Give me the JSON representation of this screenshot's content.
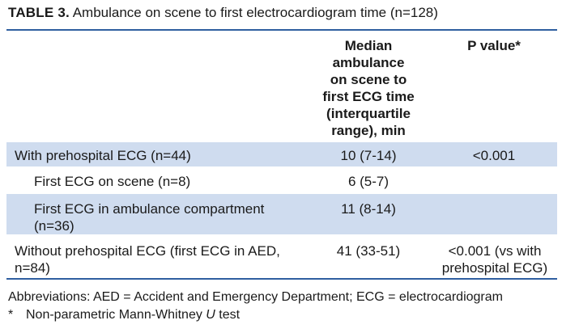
{
  "title": {
    "lead": "TABLE 3.",
    "text": "Ambulance on scene to first electrocardiogram time (n=128)"
  },
  "table": {
    "headers": {
      "median_lines": [
        "Median",
        "ambulance",
        "on scene to",
        "first ECG time",
        "(interquartile",
        "range), min"
      ],
      "pvalue": "P value*"
    },
    "rows": [
      {
        "label": [
          "With prehospital ECG (n=44)"
        ],
        "median": "10 (7-14)",
        "pvalue": [
          "<0.001"
        ]
      },
      {
        "label": [
          "First ECG on scene (n=8)"
        ],
        "median": "6 (5-7)",
        "pvalue": []
      },
      {
        "label": [
          "First ECG in ambulance compartment",
          "(n=36)"
        ],
        "median": "11 (8-14)",
        "pvalue": []
      },
      {
        "label": [
          "Without prehospital ECG (first ECG in AED,",
          "n=84)"
        ],
        "median": "41 (33-51)",
        "pvalue": [
          "<0.001 (vs with",
          "prehospital ECG)"
        ]
      }
    ]
  },
  "footnotes": {
    "abbrev": "Abbreviations: AED = Accident and Emergency Department; ECG = electrocardiogram",
    "star": "*",
    "test_prefix": "Non-parametric Mann-Whitney ",
    "test_italic": "U",
    "test_suffix": " test"
  },
  "colors": {
    "band": "#cfdcef",
    "rule": "#2f5fa0",
    "text": "#1a1a1a"
  }
}
